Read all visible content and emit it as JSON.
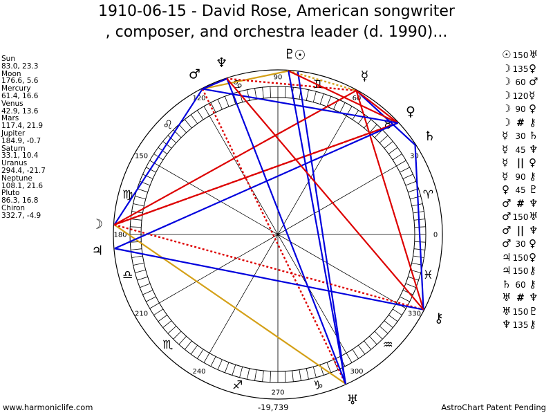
{
  "title": "1910-06-15 - David Rose, American songwriter\n, composer, and orchestra leader (d. 1990)...",
  "positions": [
    {
      "name": "Sun",
      "value": "83.0, 23.3"
    },
    {
      "name": "Moon",
      "value": "176.6, 5.6"
    },
    {
      "name": "Mercury",
      "value": "61.4, 16.6"
    },
    {
      "name": "Venus",
      "value": "42.9, 13.6"
    },
    {
      "name": "Mars",
      "value": "117.4, 21.9"
    },
    {
      "name": "Jupiter",
      "value": "184.9, -0.7"
    },
    {
      "name": "Saturn",
      "value": "33.1, 10.4"
    },
    {
      "name": "Uranus",
      "value": "294.4, -21.7"
    },
    {
      "name": "Neptune",
      "value": "108.1, 21.6"
    },
    {
      "name": "Pluto",
      "value": "86.3, 16.8"
    },
    {
      "name": "Chiron",
      "value": "332.7, -4.9"
    }
  ],
  "planets": [
    {
      "name": "sun",
      "glyph": "☉",
      "lon": 83.0
    },
    {
      "name": "moon",
      "glyph": "☽",
      "lon": 176.6
    },
    {
      "name": "mercury",
      "glyph": "☿",
      "lon": 61.4
    },
    {
      "name": "venus",
      "glyph": "♀",
      "lon": 42.9
    },
    {
      "name": "mars",
      "glyph": "♂",
      "lon": 117.4
    },
    {
      "name": "jupiter",
      "glyph": "♃",
      "lon": 184.9
    },
    {
      "name": "saturn",
      "glyph": "♄",
      "lon": 33.1
    },
    {
      "name": "uranus",
      "glyph": "♅",
      "lon": 294.4
    },
    {
      "name": "neptune",
      "glyph": "♆",
      "lon": 108.1
    },
    {
      "name": "pluto",
      "glyph": "♇",
      "lon": 86.3
    },
    {
      "name": "chiron",
      "glyph": "⚷",
      "lon": 332.7
    }
  ],
  "signs": [
    {
      "name": "aries",
      "glyph": "♈"
    },
    {
      "name": "taurus",
      "glyph": "♉"
    },
    {
      "name": "gemini",
      "glyph": "♊"
    },
    {
      "name": "cancer",
      "glyph": "♋"
    },
    {
      "name": "leo",
      "glyph": "♌"
    },
    {
      "name": "virgo",
      "glyph": "♍"
    },
    {
      "name": "libra",
      "glyph": "♎"
    },
    {
      "name": "scorpio",
      "glyph": "♏"
    },
    {
      "name": "sagittarius",
      "glyph": "♐"
    },
    {
      "name": "capricorn",
      "glyph": "♑"
    },
    {
      "name": "aquarius",
      "glyph": "♒"
    },
    {
      "name": "pisces",
      "glyph": "♓"
    }
  ],
  "degree_labels": [
    "0",
    "30",
    "60",
    "90",
    "120",
    "150",
    "180",
    "210",
    "240",
    "270",
    "300",
    "330"
  ],
  "aspects": [
    {
      "p1": "sun",
      "p1_glyph": "☉",
      "type": "150",
      "p2": "uranus",
      "p2_glyph": "♅",
      "color": "#0000dd",
      "style": "solid"
    },
    {
      "p1": "moon",
      "p1_glyph": "☽",
      "type": "135",
      "p2": "venus",
      "p2_glyph": "♀",
      "color": "#dd0000",
      "style": "dotted"
    },
    {
      "p1": "moon",
      "p1_glyph": "☽",
      "type": "60",
      "p2": "mars",
      "p2_glyph": "♂",
      "color": "#0000dd",
      "style": "solid"
    },
    {
      "p1": "moon",
      "p1_glyph": "☽",
      "type": "120",
      "p2": "mercury",
      "p2_glyph": "☿",
      "color": "#dd0000",
      "style": "solid"
    },
    {
      "p1": "moon",
      "p1_glyph": "☽",
      "type": "90",
      "p2": "venus",
      "p2_glyph": "♀",
      "color": "#dd0000",
      "style": "solid"
    },
    {
      "p1": "moon",
      "p1_glyph": "☽",
      "type": "#",
      "p2": "chiron",
      "p2_glyph": "⚷",
      "color": "#dd0000",
      "style": "dotted"
    },
    {
      "p1": "mercury",
      "p1_glyph": "☿",
      "type": "30",
      "p2": "saturn",
      "p2_glyph": "♄",
      "color": "#0000dd",
      "style": "solid"
    },
    {
      "p1": "mercury",
      "p1_glyph": "☿",
      "type": "45",
      "p2": "neptune",
      "p2_glyph": "♆",
      "color": "#dd0000",
      "style": "dotted"
    },
    {
      "p1": "mercury",
      "p1_glyph": "☿",
      "type": "||",
      "p2": "venus",
      "p2_glyph": "♀",
      "color": "#dd0000",
      "style": "solid"
    },
    {
      "p1": "mercury",
      "p1_glyph": "☿",
      "type": "90",
      "p2": "chiron",
      "p2_glyph": "⚷",
      "color": "#dd0000",
      "style": "solid"
    },
    {
      "p1": "venus",
      "p1_glyph": "♀",
      "type": "45",
      "p2": "pluto",
      "p2_glyph": "♇",
      "color": "#dd0000",
      "style": "solid"
    },
    {
      "p1": "mars",
      "p1_glyph": "♂",
      "type": "#",
      "p2": "neptune",
      "p2_glyph": "♆",
      "color": "#dd0000",
      "style": "solid"
    },
    {
      "p1": "mars",
      "p1_glyph": "♂",
      "type": "150",
      "p2": "uranus",
      "p2_glyph": "♅",
      "color": "#dd0000",
      "style": "dotted"
    },
    {
      "p1": "mars",
      "p1_glyph": "♂",
      "type": "||",
      "p2": "neptune",
      "p2_glyph": "♆",
      "color": "#0000dd",
      "style": "solid"
    },
    {
      "p1": "mars",
      "p1_glyph": "♂",
      "type": "30",
      "p2": "venus",
      "p2_glyph": "♀",
      "color": "#0000dd",
      "style": "solid"
    },
    {
      "p1": "jupiter",
      "p1_glyph": "♃",
      "type": "150",
      "p2": "venus",
      "p2_glyph": "♀",
      "color": "#0000dd",
      "style": "solid"
    },
    {
      "p1": "jupiter",
      "p1_glyph": "♃",
      "type": "150",
      "p2": "chiron",
      "p2_glyph": "⚷",
      "color": "#0000dd",
      "style": "solid"
    },
    {
      "p1": "saturn",
      "p1_glyph": "♄",
      "type": "60",
      "p2": "chiron",
      "p2_glyph": "⚷",
      "color": "#0000dd",
      "style": "solid"
    },
    {
      "p1": "uranus",
      "p1_glyph": "♅",
      "type": "#",
      "p2": "neptune",
      "p2_glyph": "♆",
      "color": "#0000dd",
      "style": "solid"
    },
    {
      "p1": "uranus",
      "p1_glyph": "♅",
      "type": "150",
      "p2": "pluto",
      "p2_glyph": "♇",
      "color": "#0000dd",
      "style": "solid"
    },
    {
      "p1": "neptune",
      "p1_glyph": "♆",
      "type": "135",
      "p2": "chiron",
      "p2_glyph": "⚷",
      "color": "#dd0000",
      "style": "solid"
    }
  ],
  "extra_lines": [
    {
      "p1": "moon",
      "p2": "uranus",
      "color": "#d4a017",
      "style": "solid"
    },
    {
      "p1": "mars",
      "p2": "pluto",
      "color": "#d4a017",
      "style": "solid"
    },
    {
      "p1": "pluto",
      "p2": "mercury",
      "color": "#d4a017",
      "style": "dotted"
    }
  ],
  "footer": {
    "left": "www.harmoniclife.com",
    "center": "-19,739",
    "right": "AstroChart Patent Pending"
  }
}
